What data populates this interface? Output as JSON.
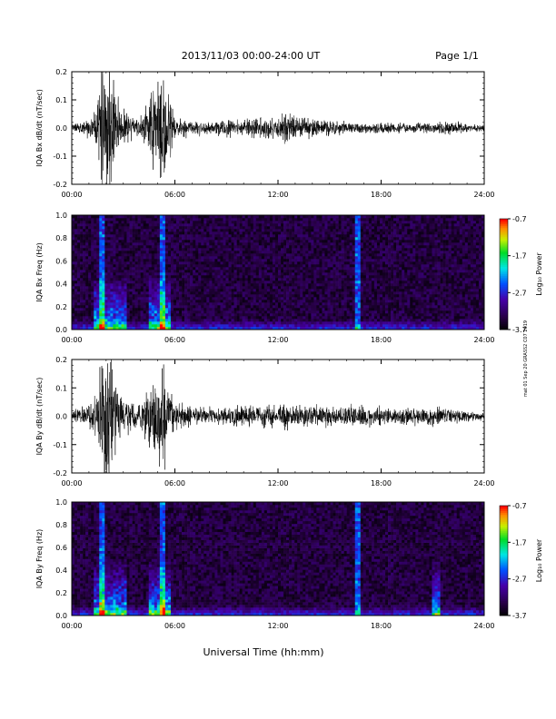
{
  "header": {
    "title": "2013/11/03  00:00-24:00 UT",
    "page": "Page 1/1"
  },
  "footer": {
    "xlabel": "Universal Time (hh:mm)",
    "side_note": "mat 01 Sep 20 GRASS2 C07 2019"
  },
  "colorbar": {
    "label": "Log₁₀ Power",
    "ticks": [
      "-0.7",
      "-1.7",
      "-2.7",
      "-3.7"
    ],
    "range": [
      -3.7,
      -0.7
    ]
  },
  "chart_data": [
    {
      "type": "line",
      "ylabel": "IQA Bx dB/dt (nT/sec)",
      "xlim": [
        0,
        24
      ],
      "ylim": [
        -0.2,
        0.2
      ],
      "xticks": [
        "00:00",
        "06:00",
        "12:00",
        "18:00",
        "24:00"
      ],
      "yticks": [
        "0.2",
        "0.1",
        "0.0",
        "-0.1",
        "-0.2"
      ],
      "x_hours": [
        0,
        1,
        1.5,
        1.8,
        2.1,
        2.6,
        3,
        4,
        4.8,
        5.2,
        5.6,
        6,
        7,
        8,
        9,
        10,
        11,
        12,
        12.5,
        13,
        14,
        15,
        16,
        17,
        18,
        19,
        20,
        21,
        22,
        23,
        24
      ],
      "envelope": [
        0.015,
        0.03,
        0.09,
        0.25,
        0.25,
        0.12,
        0.06,
        0.04,
        0.14,
        0.25,
        0.14,
        0.04,
        0.025,
        0.025,
        0.03,
        0.035,
        0.035,
        0.04,
        0.06,
        0.04,
        0.035,
        0.025,
        0.025,
        0.02,
        0.02,
        0.018,
        0.018,
        0.018,
        0.025,
        0.015,
        0.012
      ]
    },
    {
      "type": "heatmap",
      "ylabel": "IQA Bx Freq (Hz)",
      "xlim": [
        0,
        24
      ],
      "ylim": [
        0,
        1.0
      ],
      "xticks": [
        "00:00",
        "06:00",
        "12:00",
        "18:00",
        "24:00"
      ],
      "yticks": [
        "1.0",
        "0.8",
        "0.6",
        "0.4",
        "0.2",
        "0.0"
      ],
      "z_label": "Log10 Power",
      "zlim": [
        -3.7,
        -0.7
      ],
      "active_intervals_hours": [
        [
          1.3,
          3.2
        ],
        [
          4.5,
          5.8
        ]
      ],
      "vertical_lines_hours": [
        1.75,
        5.3,
        16.6
      ]
    },
    {
      "type": "line",
      "ylabel": "IQA By dB/dt (nT/sec)",
      "xlim": [
        0,
        24
      ],
      "ylim": [
        -0.2,
        0.2
      ],
      "xticks": [
        "00:00",
        "06:00",
        "12:00",
        "18:00",
        "24:00"
      ],
      "yticks": [
        "0.2",
        "0.1",
        "0.0",
        "-0.1",
        "-0.2"
      ],
      "x_hours": [
        0,
        1,
        1.5,
        1.8,
        2.1,
        2.6,
        3,
        4,
        4.8,
        5.2,
        5.6,
        6,
        7,
        8,
        9,
        10,
        11,
        12,
        12.5,
        13,
        14,
        15,
        16,
        17,
        18,
        19,
        20,
        21,
        22,
        23,
        24
      ],
      "envelope": [
        0.02,
        0.04,
        0.1,
        0.25,
        0.25,
        0.13,
        0.07,
        0.05,
        0.15,
        0.2,
        0.12,
        0.05,
        0.03,
        0.03,
        0.035,
        0.04,
        0.04,
        0.04,
        0.05,
        0.04,
        0.04,
        0.035,
        0.035,
        0.035,
        0.035,
        0.03,
        0.03,
        0.035,
        0.03,
        0.02,
        0.015
      ]
    },
    {
      "type": "heatmap",
      "ylabel": "IQA By Freq (Hz)",
      "xlim": [
        0,
        24
      ],
      "ylim": [
        0,
        1.0
      ],
      "xticks": [
        "00:00",
        "06:00",
        "12:00",
        "18:00",
        "24:00"
      ],
      "yticks": [
        "1.0",
        "0.8",
        "0.6",
        "0.4",
        "0.2",
        "0.0"
      ],
      "z_label": "Log10 Power",
      "zlim": [
        -3.7,
        -0.7
      ],
      "active_intervals_hours": [
        [
          1.3,
          3.2
        ],
        [
          4.5,
          5.8
        ],
        [
          21,
          21.5
        ]
      ],
      "vertical_lines_hours": [
        1.75,
        5.3,
        16.6
      ]
    }
  ]
}
